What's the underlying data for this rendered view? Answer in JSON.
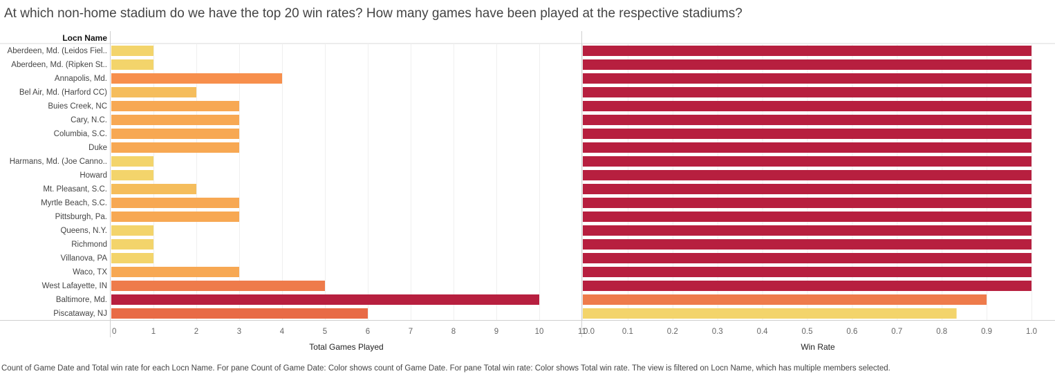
{
  "title": "At which non-home stadium do we have the top 20 win rates? How many games have been played at the respective stadiums?",
  "caption": "Count of Game Date and Total win rate for each Locn Name.  For pane Count of Game Date:  Color shows count of Game Date.  For pane Total win rate:  Color shows Total win rate. The view is filtered on Locn Name, which has multiple members selected.",
  "row_header": "Locn Name",
  "chart_data": {
    "type": "bar",
    "orientation": "horizontal",
    "categories": [
      "Aberdeen, Md. (Leidos Fiel..",
      "Aberdeen, Md. (Ripken St..",
      "Annapolis, Md.",
      "Bel Air, Md. (Harford CC)",
      "Buies Creek, NC",
      "Cary, N.C.",
      "Columbia, S.C.",
      "Duke",
      "Harmans, Md. (Joe Canno..",
      "Howard",
      "Mt. Pleasant, S.C.",
      "Myrtle Beach, S.C.",
      "Pittsburgh, Pa.",
      "Queens, N.Y.",
      "Richmond",
      "Villanova, PA",
      "Waco, TX",
      "West Lafayette, IN",
      "Baltimore, Md.",
      "Piscataway, NJ"
    ],
    "panes": [
      {
        "name": "Count of Game Date",
        "xlabel": "Total Games Played",
        "xlim": [
          0,
          11
        ],
        "ticks": [
          0,
          1,
          2,
          3,
          4,
          5,
          6,
          7,
          8,
          9,
          10,
          11
        ],
        "values": [
          1,
          1,
          4,
          2,
          3,
          3,
          3,
          3,
          1,
          1,
          2,
          3,
          3,
          1,
          1,
          1,
          3,
          5,
          10,
          6
        ],
        "colors": {
          "1": "#f3d46b",
          "2": "#f5bd5c",
          "3": "#f7a853",
          "4": "#f78f4c",
          "5": "#ee7b4b",
          "6": "#e86a46",
          "10": "#b71f3f"
        }
      },
      {
        "name": "Total win rate",
        "xlabel": "Win Rate",
        "xlim": [
          0,
          1.0
        ],
        "ticks": [
          "0.0",
          "0.1",
          "0.2",
          "0.3",
          "0.4",
          "0.5",
          "0.6",
          "0.7",
          "0.8",
          "0.9",
          "1.0"
        ],
        "values": [
          1,
          1,
          1,
          1,
          1,
          1,
          1,
          1,
          1,
          1,
          1,
          1,
          1,
          1,
          1,
          1,
          1,
          1,
          0.9,
          0.833
        ],
        "colors": {
          "1": "#b71f3f",
          "0.9": "#ee7b4b",
          "0.833": "#f3d46b"
        }
      }
    ],
    "grid": true
  }
}
